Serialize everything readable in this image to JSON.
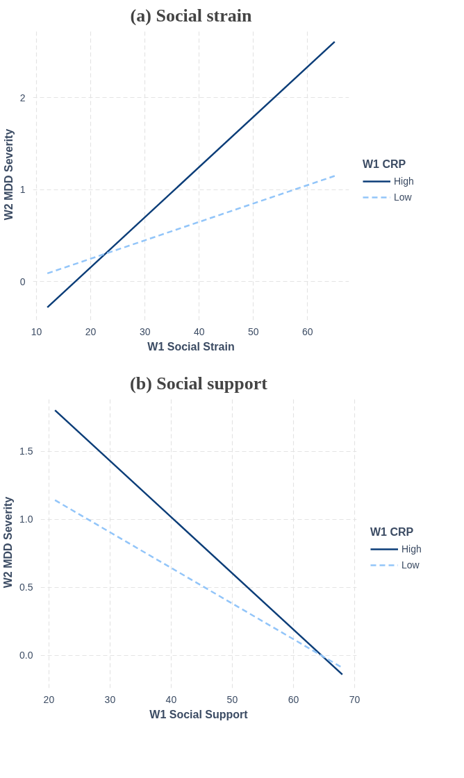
{
  "chart_data": [
    {
      "type": "line",
      "title": "(a) Social strain",
      "xlabel": "W1 Social Strain",
      "ylabel": "W2 MDD Severity",
      "legend_title": "W1 CRP",
      "x": [
        12,
        65
      ],
      "xlim": [
        9.35,
        67.65
      ],
      "ylim": [
        -0.42,
        2.75
      ],
      "xticks": [
        10,
        20,
        30,
        40,
        50,
        60
      ],
      "yticks": [
        0,
        1,
        2
      ],
      "grid": true,
      "legend": "right",
      "series": [
        {
          "name": "High",
          "color": "#0b3d78",
          "values": [
            -0.28,
            2.61
          ],
          "line_style": "solid"
        },
        {
          "name": "Low",
          "color": "#92c5f9",
          "values": [
            0.09,
            1.15
          ],
          "line_style": "dashed"
        }
      ]
    },
    {
      "type": "line",
      "title": "(b) Social support",
      "xlabel": "W1 Social Support",
      "ylabel": "W2 MDD Severity",
      "legend_title": "W1 CRP",
      "x": [
        21,
        68
      ],
      "xlim": [
        18.65,
        70.35
      ],
      "ylim": [
        -0.24,
        1.9
      ],
      "xticks": [
        20,
        30,
        40,
        50,
        60,
        70
      ],
      "yticks": [
        {
          "value": 0,
          "label": "0.0"
        },
        {
          "value": 0.5,
          "label": "0.5"
        },
        {
          "value": 1,
          "label": "1.0"
        },
        {
          "value": 1.5,
          "label": "1.5"
        }
      ],
      "grid": true,
      "legend": "right",
      "series": [
        {
          "name": "High",
          "color": "#0b3d78",
          "values": [
            1.8,
            -0.14
          ],
          "line_style": "solid"
        },
        {
          "name": "Low",
          "color": "#92c5f9",
          "values": [
            1.14,
            -0.09
          ],
          "line_style": "dashed"
        }
      ]
    }
  ]
}
